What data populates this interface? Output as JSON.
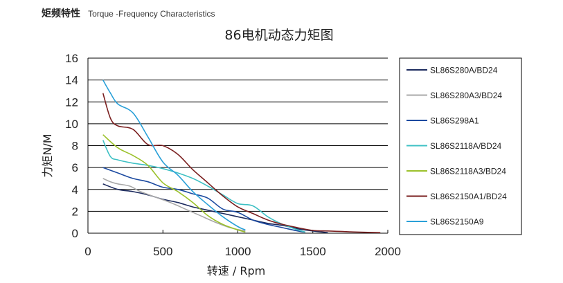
{
  "header": {
    "title_cn": "矩频特性",
    "title_en": "Torque -Frequency Characteristics"
  },
  "chart_data": {
    "type": "line",
    "title": "86电机动态力矩图",
    "xlabel": "转速 / Rpm",
    "ylabel": "力矩N/M",
    "xlim": [
      0,
      2000
    ],
    "ylim": [
      0,
      16
    ],
    "xticks": [
      0,
      500,
      1000,
      1500,
      2000
    ],
    "yticks": [
      0,
      2,
      4,
      6,
      8,
      10,
      12,
      14,
      16
    ],
    "grid": "horizontal",
    "legend": "right",
    "series": [
      {
        "name": "SL86S280A/BD24",
        "color": "#1b2a5e",
        "x": [
          100,
          200,
          300,
          400,
          500,
          600,
          700,
          800,
          900,
          1000,
          1100,
          1200,
          1300,
          1400,
          1500,
          1600
        ],
        "y": [
          4.5,
          4.0,
          3.8,
          3.5,
          3.1,
          2.8,
          2.4,
          2.1,
          1.8,
          1.5,
          1.2,
          0.9,
          0.7,
          0.4,
          0.2,
          0.05
        ]
      },
      {
        "name": "SL86S280A3/BD24",
        "color": "#a8a8a8",
        "x": [
          100,
          150,
          200,
          280,
          350,
          450,
          550,
          650,
          750,
          850,
          950,
          1050
        ],
        "y": [
          5.0,
          4.7,
          4.5,
          4.3,
          3.8,
          3.3,
          2.8,
          2.2,
          1.6,
          1.0,
          0.5,
          0.2
        ]
      },
      {
        "name": "SL86S298A1",
        "color": "#1c4aa0",
        "x": [
          100,
          200,
          300,
          400,
          500,
          600,
          700,
          800,
          900,
          1000,
          1100,
          1200,
          1300,
          1400,
          1450
        ],
        "y": [
          6.0,
          5.5,
          5.0,
          4.7,
          4.2,
          4.0,
          3.6,
          3.2,
          2.2,
          1.9,
          1.2,
          0.8,
          0.5,
          0.2,
          0.1
        ]
      },
      {
        "name": "SL86S2118A/BD24",
        "color": "#3ec0c4",
        "x": [
          100,
          150,
          200,
          300,
          400,
          500,
          600,
          700,
          800,
          900,
          1000,
          1100,
          1200,
          1300,
          1400,
          1450
        ],
        "y": [
          8.5,
          7.0,
          6.7,
          6.4,
          6.2,
          5.9,
          5.5,
          5.0,
          4.3,
          3.5,
          2.7,
          2.5,
          1.5,
          0.8,
          0.3,
          0.1
        ]
      },
      {
        "name": "SL86S2118A3/BD24",
        "color": "#9bc12a",
        "x": [
          100,
          200,
          300,
          400,
          500,
          600,
          700,
          800,
          900,
          1000,
          1050
        ],
        "y": [
          9.0,
          7.8,
          7.1,
          6.2,
          4.6,
          3.8,
          2.8,
          1.6,
          0.8,
          0.3,
          0.1
        ]
      },
      {
        "name": "SL86S2150A1/BD24",
        "color": "#7a1f1f",
        "x": [
          100,
          150,
          200,
          300,
          400,
          500,
          600,
          700,
          800,
          900,
          1000,
          1100,
          1200,
          1300,
          1400,
          1500,
          1600,
          1700,
          1800,
          1950
        ],
        "y": [
          12.8,
          10.5,
          9.8,
          9.5,
          8.1,
          8.0,
          7.2,
          5.8,
          4.6,
          3.4,
          2.4,
          1.8,
          1.2,
          0.8,
          0.5,
          0.25,
          0.2,
          0.15,
          0.1,
          0.05
        ]
      },
      {
        "name": "SL86S2150A9",
        "color": "#2aa0d8",
        "x": [
          100,
          150,
          200,
          300,
          400,
          500,
          600,
          700,
          800,
          900,
          1000,
          1050
        ],
        "y": [
          14.0,
          12.8,
          11.8,
          11.0,
          8.8,
          6.5,
          5.3,
          3.8,
          2.6,
          1.5,
          0.6,
          0.3
        ]
      }
    ]
  }
}
